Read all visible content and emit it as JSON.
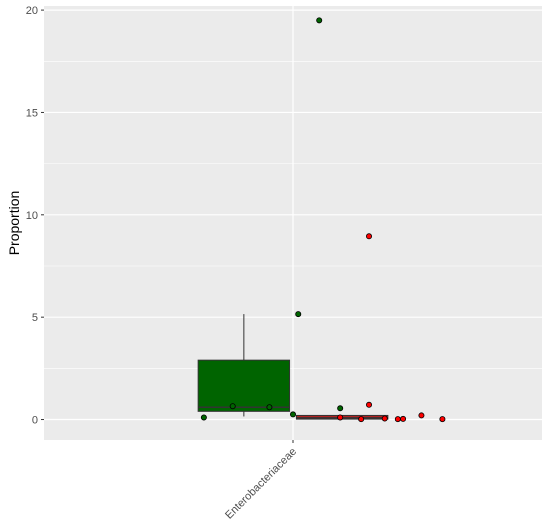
{
  "chart_data": {
    "type": "box",
    "title": "",
    "xlabel": "",
    "ylabel": "Proportion",
    "categories": [
      "Enterobacteriaceae"
    ],
    "ylim": [
      -1,
      20.2
    ],
    "y_ticks": [
      0,
      5,
      10,
      15,
      20
    ],
    "grid": true,
    "legend": "none",
    "colors": {
      "panel_bg": "#ebebeb",
      "grid": "#ffffff",
      "text": "#4d4d4d"
    },
    "series": [
      {
        "fill": "#006400",
        "point_fill": "#006400",
        "box": {
          "min": 0.15,
          "q1": 0.4,
          "median": 0.6,
          "q3": 2.9,
          "max": 5.15
        },
        "points": [
          {
            "x": -0.34,
            "y": 0.1
          },
          {
            "x": -0.23,
            "y": 0.65
          },
          {
            "x": -0.09,
            "y": 0.6
          },
          {
            "x": 0.0,
            "y": 0.25
          },
          {
            "x": 0.02,
            "y": 5.15
          },
          {
            "x": 0.1,
            "y": 19.5
          },
          {
            "x": 0.18,
            "y": 0.55
          }
        ]
      },
      {
        "fill": "#b22222",
        "point_fill": "#ff0000",
        "box": {
          "min": 0.0,
          "q1": 0.02,
          "median": 0.08,
          "q3": 0.2,
          "max": 0.2
        },
        "points": [
          {
            "x": 0.18,
            "y": 0.1
          },
          {
            "x": 0.26,
            "y": 0.02
          },
          {
            "x": 0.29,
            "y": 0.72
          },
          {
            "x": 0.29,
            "y": 8.95
          },
          {
            "x": 0.35,
            "y": 0.05
          },
          {
            "x": 0.4,
            "y": 0.02
          },
          {
            "x": 0.42,
            "y": 0.03
          },
          {
            "x": 0.49,
            "y": 0.2
          },
          {
            "x": 0.57,
            "y": 0.02
          }
        ]
      }
    ]
  }
}
